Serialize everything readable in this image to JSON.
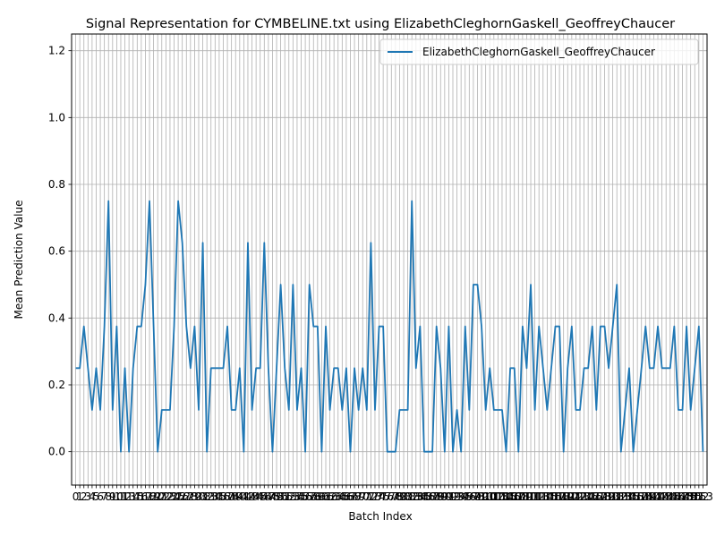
{
  "chart_data": {
    "type": "line",
    "title": "Signal Representation for CYMBELINE.txt using ElizabethCleghornGaskell_GeoffreyChaucer",
    "xlabel": "Batch Index",
    "ylabel": "Mean Prediction Value",
    "xlim": [
      -1,
      154
    ],
    "ylim": [
      -0.1,
      1.25
    ],
    "yticks": [
      0.0,
      0.2,
      0.4,
      0.6,
      0.8,
      1.0,
      1.2
    ],
    "ytick_labels": [
      "0.0",
      "0.2",
      "0.4",
      "0.6",
      "0.8",
      "1.0",
      "1.2"
    ],
    "grid": true,
    "legend_position": "upper-right",
    "series": [
      {
        "name": "ElizabethCleghornGaskell_GeoffreyChaucer",
        "color": "#1f77b4",
        "x": [
          0,
          1,
          2,
          3,
          4,
          5,
          6,
          7,
          8,
          9,
          10,
          11,
          12,
          13,
          14,
          15,
          16,
          17,
          18,
          19,
          20,
          21,
          22,
          23,
          24,
          25,
          26,
          27,
          28,
          29,
          30,
          31,
          32,
          33,
          34,
          35,
          36,
          37,
          38,
          39,
          40,
          41,
          42,
          43,
          44,
          45,
          46,
          47,
          48,
          49,
          50,
          51,
          52,
          53,
          54,
          55,
          56,
          57,
          58,
          59,
          60,
          61,
          62,
          63,
          64,
          65,
          66,
          67,
          68,
          69,
          70,
          71,
          72,
          73,
          74,
          75,
          76,
          77,
          78,
          79,
          80,
          81,
          82,
          83,
          84,
          85,
          86,
          87,
          88,
          89,
          90,
          91,
          92,
          93,
          94,
          95,
          96,
          97,
          98,
          99,
          100,
          101,
          102,
          103,
          104,
          105,
          106,
          107,
          108,
          109,
          110,
          111,
          112,
          113,
          114,
          115,
          116,
          117,
          118,
          119,
          120,
          121,
          122,
          123,
          124,
          125,
          126,
          127,
          128,
          129,
          130,
          131,
          132,
          133,
          134,
          135,
          136,
          137,
          138,
          139,
          140,
          141,
          142,
          143,
          144,
          145,
          146,
          147,
          148,
          149,
          150,
          151,
          152,
          153
        ],
        "values": [
          0.25,
          0.25,
          0.375,
          0.25,
          0.125,
          0.25,
          0.125,
          0.375,
          0.75,
          0.125,
          0.375,
          0.0,
          0.25,
          0.0,
          0.25,
          0.375,
          0.375,
          0.5,
          0.75,
          0.375,
          0.0,
          0.125,
          0.125,
          0.125,
          0.375,
          0.75,
          0.625,
          0.375,
          0.25,
          0.375,
          0.125,
          0.625,
          0.0,
          0.25,
          0.25,
          0.25,
          0.25,
          0.375,
          0.125,
          0.125,
          0.25,
          0.0,
          0.625,
          0.125,
          0.25,
          0.25,
          0.625,
          0.25,
          0.0,
          0.25,
          0.5,
          0.25,
          0.125,
          0.5,
          0.125,
          0.25,
          0.0,
          0.5,
          0.375,
          0.375,
          0.0,
          0.375,
          0.125,
          0.25,
          0.25,
          0.125,
          0.25,
          0.0,
          0.25,
          0.125,
          0.25,
          0.125,
          0.625,
          0.125,
          0.375,
          0.375,
          0.0,
          0.0,
          0.0,
          0.125,
          0.125,
          0.125,
          0.75,
          0.25,
          0.375,
          0.0,
          0.0,
          0.0,
          0.375,
          0.25,
          0.0,
          0.375,
          0.0,
          0.125,
          0.0,
          0.375,
          0.125,
          0.5,
          0.5,
          0.375,
          0.125,
          0.25,
          0.125,
          0.125,
          0.125,
          0.0,
          0.25,
          0.25,
          0.0,
          0.375,
          0.25,
          0.5,
          0.125,
          0.375,
          0.25,
          0.125,
          0.25,
          0.375,
          0.375,
          0.0,
          0.25,
          0.375,
          0.125,
          0.125,
          0.25,
          0.25,
          0.375,
          0.125,
          0.375,
          0.375,
          0.25,
          0.375,
          0.5,
          0.0,
          0.125,
          0.25,
          0.0,
          0.125,
          0.25,
          0.375,
          0.25,
          0.25,
          0.375,
          0.25,
          0.25,
          0.25,
          0.375,
          0.125,
          0.125,
          0.375,
          0.125,
          0.25,
          0.375,
          0.0
        ]
      }
    ]
  }
}
